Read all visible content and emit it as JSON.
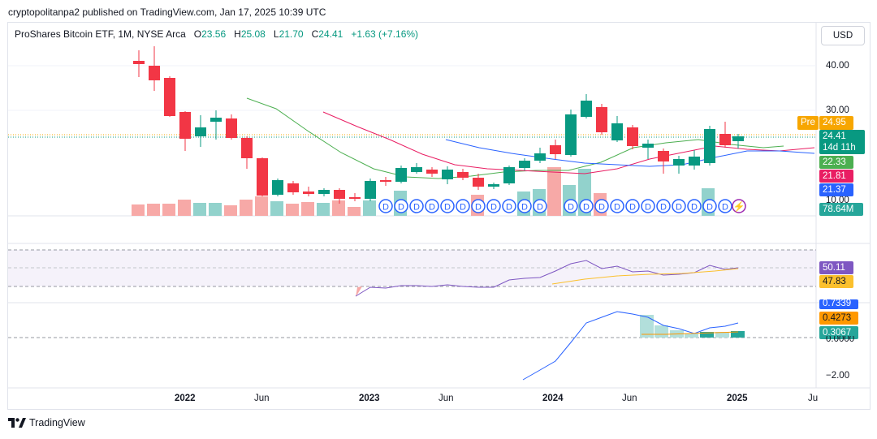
{
  "header": {
    "published": "cryptopolitanpa2 published on TradingView.com, Jan 17, 2025 10:39 UTC"
  },
  "legend": {
    "symbol": "ProShares Bitcoin ETF, 1M, NYSE Arca",
    "o_label": "O",
    "o": "23.56",
    "h_label": "H",
    "h": "25.08",
    "l_label": "L",
    "l": "21.70",
    "c_label": "C",
    "c": "24.41",
    "change": "+1.63 (+7.16%)"
  },
  "currency": "USD",
  "price_axis": [
    "40.00",
    "30.00",
    "10.00"
  ],
  "price_tags": {
    "pre_label": "Pre",
    "pre_value": "24.95",
    "last": "24.41",
    "countdown": "14d 11h",
    "ma_green": "22.33",
    "ma_red": "21.81",
    "ma_blue": "21.37",
    "volume": "78.64M"
  },
  "rsi_tags": {
    "rsi": "50.11",
    "rsi_ma": "47.83"
  },
  "macd_tags": {
    "macd": "0.7339",
    "signal": "0.4273",
    "hist": "0.3067",
    "zero": "0.0000",
    "low": "−2.00"
  },
  "time_axis": [
    "2022",
    "Jun",
    "2023",
    "Jun",
    "2024",
    "Jun",
    "2025",
    "Jul"
  ],
  "dividend_marker": "D",
  "footer": {
    "brand": "TradingView"
  },
  "colors": {
    "up": "#089981",
    "down": "#f23645",
    "ma_green": "#4caf50",
    "ma_red": "#e91e63",
    "ma_blue": "#2962ff",
    "rsi": "#7e57c2",
    "rsi_ma": "#fbc02d"
  }
}
